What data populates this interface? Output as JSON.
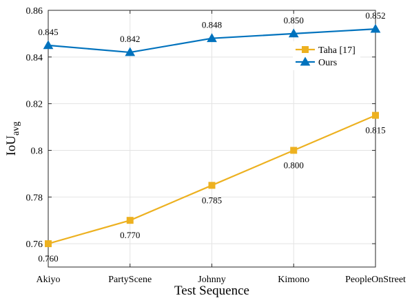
{
  "chart_data": {
    "type": "line",
    "title": "",
    "xlabel": "Test Sequence",
    "ylabel": {
      "main": "IoU",
      "sub": "avg"
    },
    "categories": [
      "Akiyo",
      "PartyScene",
      "Johnny",
      "Kimono",
      "PeopleOnStreet"
    ],
    "ylim": [
      0.75,
      0.86
    ],
    "yticks": [
      0.76,
      0.78,
      0.8,
      0.82,
      0.84,
      0.86
    ],
    "ytick_labels": [
      "0.76",
      "0.78",
      "0.8",
      "0.82",
      "0.84",
      "0.86"
    ],
    "grid": true,
    "legend_position": "upper-right",
    "series": [
      {
        "name": "Taha [17]",
        "values": [
          0.76,
          0.77,
          0.785,
          0.8,
          0.815
        ],
        "labels": [
          "0.760",
          "0.770",
          "0.785",
          "0.800",
          "0.815"
        ],
        "label_position": "below",
        "marker": "square",
        "color": "#EDB120"
      },
      {
        "name": "Ours",
        "values": [
          0.845,
          0.842,
          0.848,
          0.85,
          0.852
        ],
        "labels": [
          "0.845",
          "0.842",
          "0.848",
          "0.850",
          "0.852"
        ],
        "label_position": "above",
        "marker": "triangle",
        "color": "#0072BD"
      }
    ]
  }
}
